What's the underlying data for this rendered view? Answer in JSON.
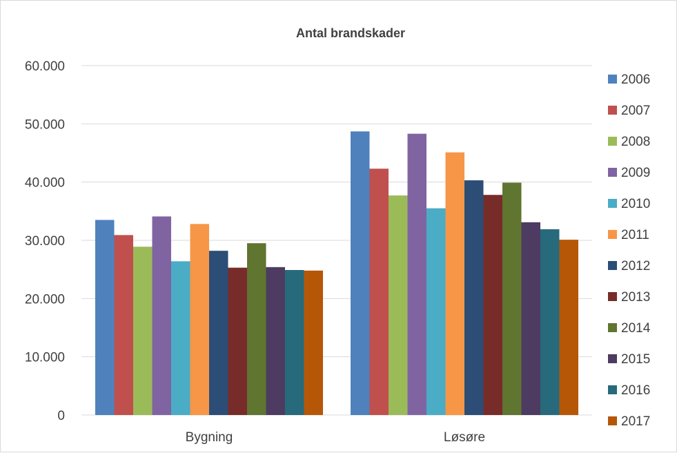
{
  "chart_data": {
    "type": "bar",
    "title": "Antal brandskader",
    "categories": [
      "Bygning",
      "Løsøre"
    ],
    "ylim": [
      0,
      60000
    ],
    "yticks": [
      0,
      10000,
      20000,
      30000,
      40000,
      50000,
      60000
    ],
    "ytick_labels": [
      "0",
      "10.000",
      "20.000",
      "30.000",
      "40.000",
      "50.000",
      "60.000"
    ],
    "grid": true,
    "legend": "right",
    "series": [
      {
        "name": "2006",
        "color": "#4F81BD",
        "values": [
          33500,
          48700
        ]
      },
      {
        "name": "2007",
        "color": "#C0504D",
        "values": [
          30900,
          42300
        ]
      },
      {
        "name": "2008",
        "color": "#9BBB59",
        "values": [
          28900,
          37700
        ]
      },
      {
        "name": "2009",
        "color": "#8064A2",
        "values": [
          34100,
          48300
        ]
      },
      {
        "name": "2010",
        "color": "#4BACC6",
        "values": [
          26400,
          35500
        ]
      },
      {
        "name": "2011",
        "color": "#F79646",
        "values": [
          32800,
          45100
        ]
      },
      {
        "name": "2012",
        "color": "#2C4D75",
        "values": [
          28200,
          40300
        ]
      },
      {
        "name": "2013",
        "color": "#772C2A",
        "values": [
          25300,
          37800
        ]
      },
      {
        "name": "2014",
        "color": "#5F7530",
        "values": [
          29500,
          39900
        ]
      },
      {
        "name": "2015",
        "color": "#4D3B62",
        "values": [
          25400,
          33100
        ]
      },
      {
        "name": "2016",
        "color": "#276A7C",
        "values": [
          24900,
          31900
        ]
      },
      {
        "name": "2017",
        "color": "#B65708",
        "values": [
          24800,
          30100
        ]
      }
    ]
  }
}
